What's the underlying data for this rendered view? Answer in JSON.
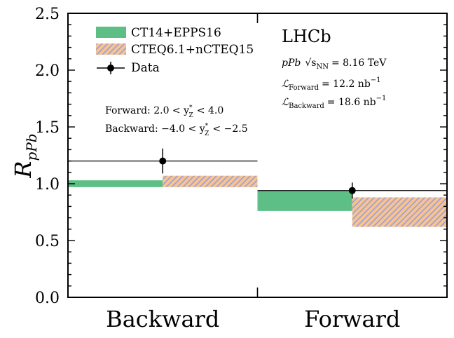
{
  "chart_data": {
    "type": "bar",
    "categories": [
      "Backward",
      "Forward"
    ],
    "ylabel": "R",
    "ylabel_subscript": "pPb",
    "ylim": [
      0.0,
      2.5
    ],
    "yticks": [
      "0.0",
      "0.5",
      "1.0",
      "1.5",
      "2.0",
      "2.5"
    ],
    "grid": false,
    "legend_position": "top-left",
    "series": [
      {
        "name": "CT14+EPPS16",
        "kind": "band",
        "color": "#5dbf86",
        "bands": [
          {
            "category": "Backward",
            "low": 0.97,
            "high": 1.03
          },
          {
            "category": "Forward",
            "low": 0.76,
            "high": 0.94
          }
        ]
      },
      {
        "name": "CTEQ6.1+nCTEQ15",
        "kind": "band",
        "color": "#f8c390",
        "hatch_color": "#9b9fd6",
        "bands": [
          {
            "category": "Backward",
            "low": 0.97,
            "high": 1.07
          },
          {
            "category": "Forward",
            "low": 0.62,
            "high": 0.88
          }
        ]
      },
      {
        "name": "Data",
        "kind": "errorbar",
        "color": "#000000",
        "points": [
          {
            "category": "Backward",
            "value": 1.2,
            "err_low": 0.11,
            "err_high": 0.11
          },
          {
            "category": "Forward",
            "value": 0.94,
            "err_low": 0.07,
            "err_high": 0.07
          }
        ]
      }
    ],
    "annotations": {
      "experiment": "LHCb",
      "system_prefix": "pPb",
      "energy_label": "√s",
      "energy_sub": "NN",
      "energy_value": "= 8.16 TeV",
      "lumi_forward_label": "ℒ",
      "lumi_forward_sub": "Forward",
      "lumi_forward_value": "= 12.2 nb",
      "lumi_backward_label": "ℒ",
      "lumi_backward_sub": "Backward",
      "lumi_backward_value": "= 18.6 nb",
      "lumi_exponent": "−1",
      "forward_range": "Forward: 2.0 < y",
      "forward_range_end": "< 4.0",
      "backward_range": "Backward: −4.0 < y",
      "backward_range_end": "< −2.5",
      "rapidity_sup": "*",
      "rapidity_sub": "Z"
    }
  }
}
